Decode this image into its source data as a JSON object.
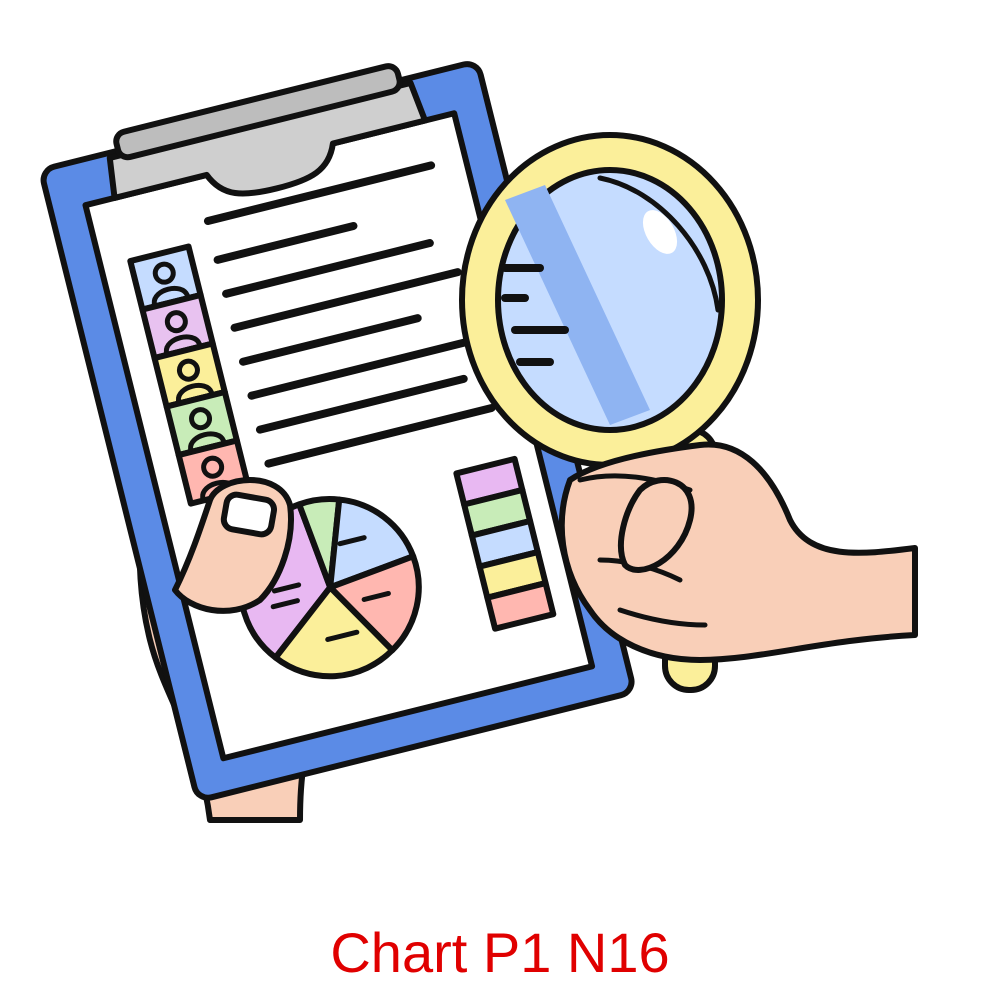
{
  "caption": "Chart P1 N16"
}
